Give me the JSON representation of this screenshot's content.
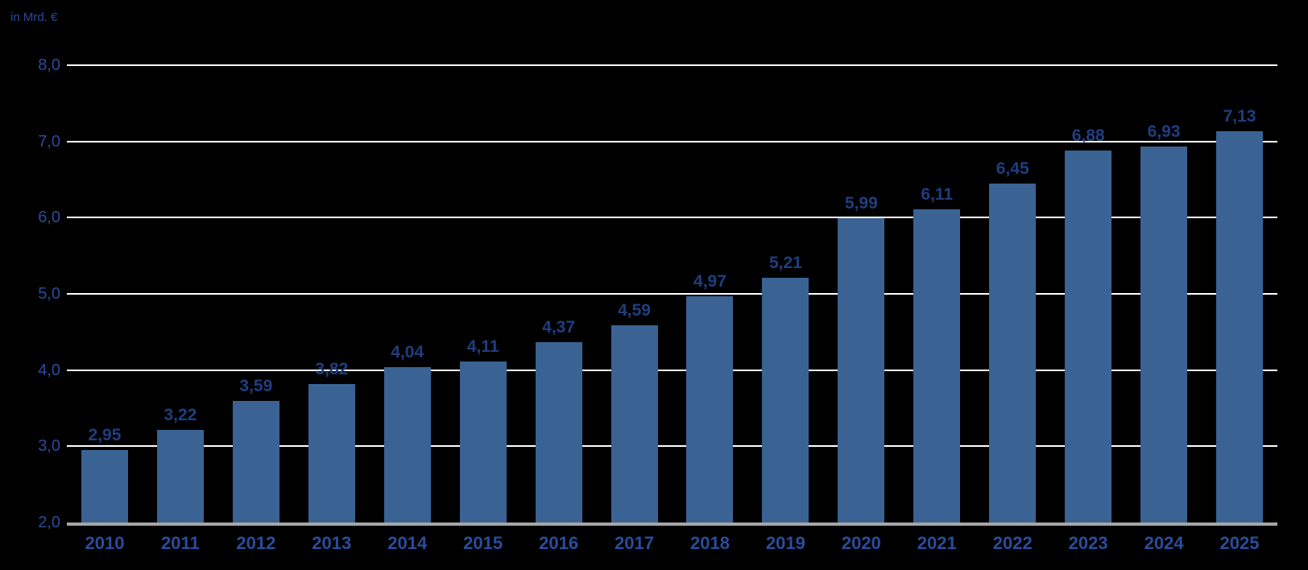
{
  "chart_data": {
    "type": "bar",
    "title": "",
    "unit_label": "in Mrd. €",
    "xlabel": "",
    "ylabel": "in Mrd. €",
    "categories": [
      "2010",
      "2011",
      "2012",
      "2013",
      "2014",
      "2015",
      "2016",
      "2017",
      "2018",
      "2019",
      "2020",
      "2021",
      "2022",
      "2023",
      "2024",
      "2025"
    ],
    "values": [
      2.95,
      3.22,
      3.59,
      3.82,
      4.04,
      4.11,
      4.37,
      4.59,
      4.97,
      5.21,
      5.99,
      6.11,
      6.45,
      6.88,
      6.93,
      7.13
    ],
    "value_labels": [
      "2,95",
      "3,22",
      "3,59",
      "3,82",
      "4,04",
      "4,11",
      "4,37",
      "4,59",
      "4,97",
      "5,21",
      "5,99",
      "6,11",
      "6,45",
      "6,88",
      "6,93",
      "7,13"
    ],
    "ylim": [
      2.0,
      8.0
    ],
    "yticks": [
      {
        "value": 2.0,
        "label": "2,0"
      },
      {
        "value": 3.0,
        "label": "3,0"
      },
      {
        "value": 4.0,
        "label": "4,0"
      },
      {
        "value": 5.0,
        "label": "5,0"
      },
      {
        "value": 6.0,
        "label": "6,0"
      },
      {
        "value": 7.0,
        "label": "7,0"
      },
      {
        "value": 8.0,
        "label": "8,0"
      }
    ],
    "grid": "horizontal",
    "legend": "none",
    "colors": {
      "background": "#000000",
      "bar": "#3A6394",
      "gridline": "#FFFFFF",
      "axis_line": "#A6A6A6",
      "value_label": "#1F3E80",
      "year_label": "#2B4C9C",
      "ytick_label": "#2A4A9C",
      "unit_label": "#2A4A9C"
    }
  }
}
